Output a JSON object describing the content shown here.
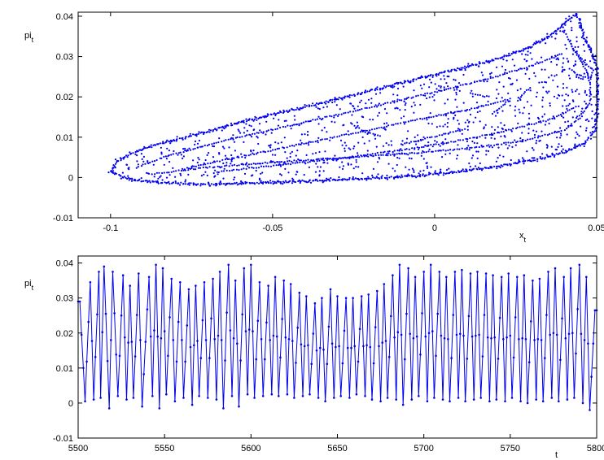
{
  "chart_data": [
    {
      "type": "scatter",
      "xlabel": "x",
      "xlabel_sub": "t",
      "ylabel": "pi",
      "ylabel_sub": "t",
      "xlim": [
        -0.11,
        0.05
      ],
      "ylim": [
        -0.01,
        0.041
      ],
      "x_ticks": [
        -0.1,
        -0.05,
        0,
        0.05
      ],
      "x_tick_labels": [
        "-0.1",
        "-0.05",
        "0",
        "0.05"
      ],
      "y_ticks": [
        -0.01,
        0,
        0.01,
        0.02,
        0.03,
        0.04
      ],
      "y_tick_labels": [
        "-0.01",
        "0",
        "0.01",
        "0.02",
        "0.03",
        "0.04"
      ],
      "grid": false,
      "legend": "none",
      "color": "#0000ee",
      "boundary_outline": [
        [
          -0.1,
          0.0015
        ],
        [
          -0.098,
          0.004
        ],
        [
          -0.092,
          0.0065
        ],
        [
          -0.082,
          0.009
        ],
        [
          -0.07,
          0.0115
        ],
        [
          -0.056,
          0.0145
        ],
        [
          -0.04,
          0.0175
        ],
        [
          -0.025,
          0.0205
        ],
        [
          -0.01,
          0.0235
        ],
        [
          0.005,
          0.0265
        ],
        [
          0.02,
          0.0295
        ],
        [
          0.03,
          0.0325
        ],
        [
          0.037,
          0.036
        ],
        [
          0.041,
          0.039
        ],
        [
          0.0435,
          0.0405
        ],
        [
          0.045,
          0.0385
        ],
        [
          0.046,
          0.035
        ],
        [
          0.0495,
          0.029
        ],
        [
          0.0502,
          0.0265
        ],
        [
          0.0502,
          0.021
        ],
        [
          0.0502,
          0.016
        ],
        [
          0.0495,
          0.012
        ],
        [
          0.0465,
          0.0085
        ],
        [
          0.041,
          0.0065
        ],
        [
          0.032,
          0.0045
        ],
        [
          0.02,
          0.0028
        ],
        [
          0.005,
          0.0012
        ],
        [
          -0.01,
          0.0002
        ],
        [
          -0.03,
          -0.0006
        ],
        [
          -0.05,
          -0.0012
        ],
        [
          -0.07,
          -0.0017
        ],
        [
          -0.085,
          -0.0013
        ],
        [
          -0.095,
          -0.0004
        ],
        [
          -0.1,
          0.0015
        ]
      ],
      "inner_arcs": [
        [
          [
            -0.092,
            0.0025
          ],
          [
            -0.082,
            0.0055
          ],
          [
            -0.068,
            0.0085
          ],
          [
            -0.052,
            0.0115
          ],
          [
            -0.036,
            0.0145
          ],
          [
            -0.018,
            0.0178
          ],
          [
            0.0,
            0.0212
          ],
          [
            0.018,
            0.0248
          ],
          [
            0.032,
            0.0282
          ],
          [
            0.04,
            0.031
          ]
        ],
        [
          [
            -0.088,
            0.0008
          ],
          [
            -0.07,
            0.0025
          ],
          [
            -0.05,
            0.0038
          ],
          [
            -0.03,
            0.0048
          ],
          [
            -0.01,
            0.0058
          ],
          [
            0.01,
            0.0072
          ],
          [
            0.028,
            0.0092
          ],
          [
            0.04,
            0.0118
          ],
          [
            0.046,
            0.0155
          ]
        ],
        [
          [
            -0.078,
            0.002
          ],
          [
            -0.064,
            0.0045
          ],
          [
            -0.05,
            0.0068
          ],
          [
            -0.036,
            0.0092
          ],
          [
            -0.02,
            0.0118
          ],
          [
            -0.006,
            0.0142
          ],
          [
            0.01,
            0.0168
          ],
          [
            0.024,
            0.0196
          ]
        ],
        [
          [
            -0.068,
            0.0012
          ],
          [
            -0.055,
            0.0025
          ],
          [
            -0.04,
            0.0038
          ],
          [
            -0.025,
            0.0052
          ],
          [
            -0.01,
            0.0068
          ],
          [
            0.005,
            0.0088
          ],
          [
            0.02,
            0.0112
          ],
          [
            0.035,
            0.0142
          ],
          [
            0.045,
            0.018
          ]
        ],
        [
          [
            -0.026,
            0.0135
          ],
          [
            -0.024,
            0.0125
          ],
          [
            -0.022,
            0.0115
          ],
          [
            -0.019,
            0.0108
          ],
          [
            -0.016,
            0.0103
          ]
        ],
        [
          [
            -0.01,
            0.0082
          ],
          [
            -0.005,
            0.0092
          ],
          [
            0.0,
            0.0102
          ],
          [
            0.005,
            0.0112
          ],
          [
            0.01,
            0.0122
          ]
        ],
        [
          [
            0.018,
            0.0158
          ],
          [
            0.02,
            0.0172
          ],
          [
            0.022,
            0.0186
          ],
          [
            0.024,
            0.0192
          ]
        ],
        [
          [
            0.011,
            0.0208
          ],
          [
            0.014,
            0.0203
          ],
          [
            0.017,
            0.02
          ]
        ],
        [
          [
            0.026,
            0.0198
          ],
          [
            0.028,
            0.0212
          ],
          [
            0.03,
            0.0226
          ]
        ],
        [
          [
            0.042,
            0.033
          ],
          [
            0.045,
            0.029
          ],
          [
            0.047,
            0.026
          ],
          [
            0.048,
            0.023
          ],
          [
            0.048,
            0.019
          ],
          [
            0.046,
            0.016
          ],
          [
            0.043,
            0.0145
          ]
        ],
        [
          [
            0.04,
            0.036
          ],
          [
            0.043,
            0.0315
          ],
          [
            0.0465,
            0.0285
          ],
          [
            0.049,
            0.0265
          ],
          [
            0.048,
            0.0245
          ],
          [
            0.044,
            0.0255
          ],
          [
            0.041,
            0.0275
          ]
        ]
      ]
    },
    {
      "type": "line",
      "xlabel": "t",
      "ylabel": "pi",
      "ylabel_sub": "t",
      "xlim": [
        5500,
        5800
      ],
      "ylim": [
        -0.01,
        0.042
      ],
      "x_ticks": [
        5500,
        5550,
        5600,
        5650,
        5700,
        5750,
        5800
      ],
      "x_tick_labels": [
        "5500",
        "5550",
        "5600",
        "5650",
        "5700",
        "5750",
        "5800"
      ],
      "y_ticks": [
        -0.01,
        0,
        0.01,
        0.02,
        0.03,
        0.04
      ],
      "y_tick_labels": [
        "-0.01",
        "0",
        "0.01",
        "0.02",
        "0.03",
        "0.04"
      ],
      "grid": false,
      "legend": "none",
      "color": "#0000ee",
      "series": [
        {
          "x_start": 5500,
          "x_step": 1,
          "peak_times": [
            5501,
            5507,
            5512,
            5515,
            5520,
            5526,
            5530,
            5535,
            5541,
            5545,
            5549,
            5554,
            5559,
            5564,
            5568,
            5573,
            5578,
            5582,
            5587,
            5591,
            5596,
            5600,
            5605,
            5610,
            5614,
            5619,
            5623,
            5628,
            5632,
            5637,
            5641,
            5646,
            5650,
            5655,
            5659,
            5664,
            5668,
            5673,
            5677,
            5682,
            5686,
            5691,
            5695,
            5700,
            5704,
            5709,
            5713,
            5718,
            5722,
            5727,
            5731,
            5736,
            5740,
            5745,
            5749,
            5754,
            5758,
            5763,
            5767,
            5772,
            5776,
            5781,
            5785,
            5790,
            5794,
            5799
          ],
          "peak_values": [
            0.029,
            0.0345,
            0.0375,
            0.039,
            0.0375,
            0.0365,
            0.0335,
            0.037,
            0.036,
            0.0395,
            0.0385,
            0.0355,
            0.0345,
            0.0325,
            0.0335,
            0.0345,
            0.0355,
            0.0375,
            0.0395,
            0.035,
            0.0385,
            0.0395,
            0.0345,
            0.0335,
            0.036,
            0.035,
            0.034,
            0.0315,
            0.0305,
            0.0285,
            0.03,
            0.0325,
            0.0305,
            0.03,
            0.03,
            0.0305,
            0.031,
            0.032,
            0.034,
            0.0365,
            0.0395,
            0.0385,
            0.036,
            0.0375,
            0.0395,
            0.0375,
            0.036,
            0.0375,
            0.038,
            0.037,
            0.0375,
            0.037,
            0.0365,
            0.036,
            0.037,
            0.036,
            0.0365,
            0.035,
            0.0355,
            0.0375,
            0.0385,
            0.036,
            0.0385,
            0.0395,
            0.036,
            0.0265
          ],
          "trough_times": [
            5504,
            5509,
            5513,
            5518,
            5523,
            5528,
            5532,
            5537,
            5543,
            5547,
            5551,
            5556,
            5561,
            5566,
            5570,
            5575,
            5580,
            5584,
            5589,
            5593,
            5598,
            5602,
            5607,
            5612,
            5616,
            5621,
            5625,
            5630,
            5634,
            5639,
            5643,
            5648,
            5652,
            5657,
            5661,
            5666,
            5670,
            5675,
            5679,
            5684,
            5688,
            5693,
            5697,
            5702,
            5706,
            5711,
            5715,
            5720,
            5724,
            5729,
            5733,
            5738,
            5742,
            5747,
            5751,
            5756,
            5760,
            5765,
            5769,
            5774,
            5778,
            5783,
            5787,
            5792,
            5796
          ],
          "trough_values": [
            0.0005,
            0.001,
            0.0015,
            -0.0015,
            0.002,
            0.001,
            0.0015,
            -0.001,
            0.002,
            -0.0015,
            0.0025,
            0.0005,
            0.0015,
            -0.0005,
            0.002,
            0.0015,
            0.001,
            -0.0015,
            0.002,
            -0.001,
            0.0025,
            0.0015,
            0.002,
            0.0025,
            0.002,
            0.0025,
            0.0015,
            0.002,
            0.0025,
            0.0015,
            0.0005,
            0.0015,
            0.002,
            0.0015,
            0.0025,
            0.002,
            0.001,
            0.0005,
            0.0015,
            0.001,
            -0.0005,
            0.001,
            0.002,
            0.0005,
            0.0015,
            0.001,
            0.0005,
            0.0015,
            0.0005,
            0.001,
            0.0015,
            0.0005,
            0.001,
            0.0005,
            0.0015,
            0.0005,
            0.0,
            0.001,
            0.0005,
            0.0015,
            0.0005,
            0.001,
            0.0015,
            0.0,
            -0.002
          ]
        }
      ]
    }
  ]
}
